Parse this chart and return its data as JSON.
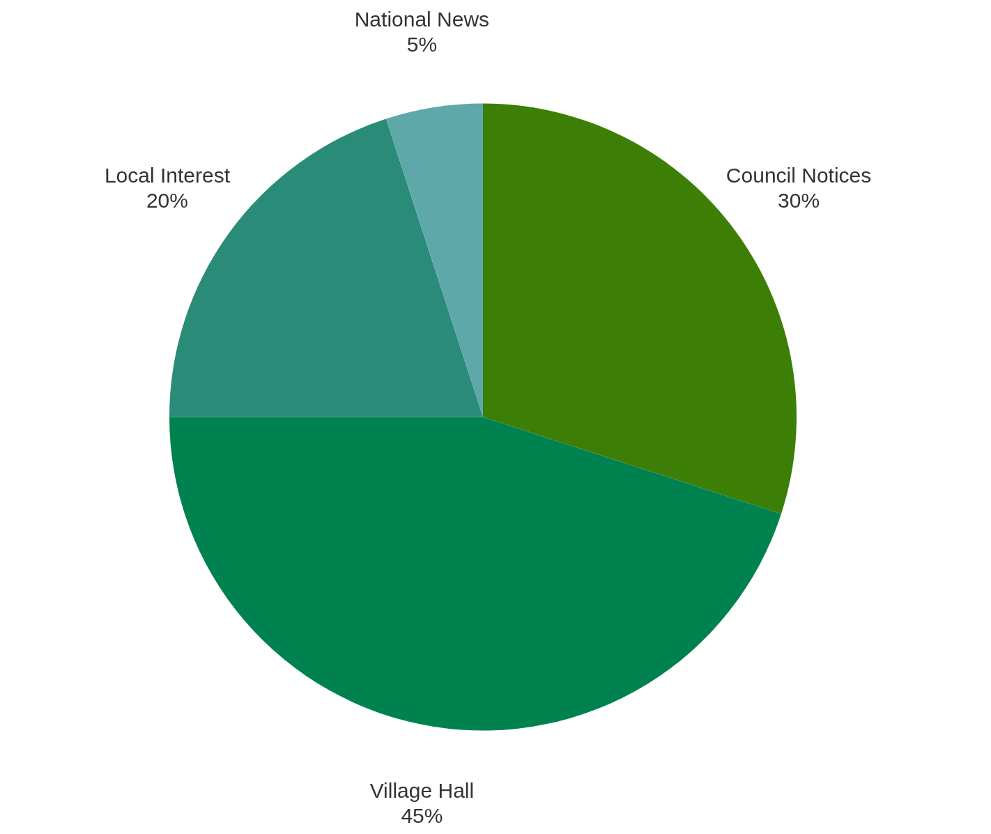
{
  "chart_data": {
    "type": "pie",
    "categories": [
      "Council Notices",
      "Village Hall",
      "Local Interest",
      "National News"
    ],
    "values": [
      30,
      45,
      20,
      5
    ],
    "value_labels": [
      "30%",
      "45%",
      "20%",
      "5%"
    ],
    "colors": [
      "#3d7f06",
      "#008250",
      "#2a8b79",
      "#5fa8a9"
    ]
  }
}
